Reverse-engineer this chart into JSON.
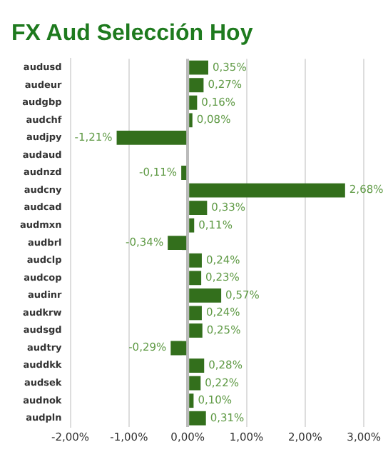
{
  "chart_data": {
    "type": "bar",
    "title": "FX Aud Selección Hoy",
    "orientation": "horizontal",
    "categories": [
      "audusd",
      "audeur",
      "audgbp",
      "audchf",
      "audjpy",
      "audaud",
      "audnzd",
      "audcny",
      "audcad",
      "audmxn",
      "audbrl",
      "audclp",
      "audcop",
      "audinr",
      "audkrw",
      "audsgd",
      "audtry",
      "auddkk",
      "audsek",
      "audnok",
      "audpln"
    ],
    "values": [
      0.35,
      0.27,
      0.16,
      0.08,
      -1.21,
      null,
      -0.11,
      2.68,
      0.33,
      0.11,
      -0.34,
      0.24,
      0.23,
      0.57,
      0.24,
      0.25,
      -0.29,
      0.28,
      0.22,
      0.1,
      0.31
    ],
    "value_labels": [
      "0,35%",
      "0,27%",
      "0,16%",
      "0,08%",
      "-1,21%",
      null,
      "-0,11%",
      "2,68%",
      "0,33%",
      "0,11%",
      "-0,34%",
      "0,24%",
      "0,23%",
      "0,57%",
      "0,24%",
      "0,25%",
      "-0,29%",
      "0,28%",
      "0,22%",
      "0,10%",
      "0,31%"
    ],
    "color": "#336f1c",
    "xlim": [
      -2,
      3
    ],
    "xticks": [
      {
        "value": -2,
        "label": "-2,00%"
      },
      {
        "value": -1,
        "label": "-1,00%"
      },
      {
        "value": 0,
        "label": "0,00%"
      },
      {
        "value": 1,
        "label": "1,00%"
      },
      {
        "value": 2,
        "label": "2,00%"
      },
      {
        "value": 3,
        "label": "3,00%"
      }
    ],
    "grid": "x",
    "legend": false
  }
}
